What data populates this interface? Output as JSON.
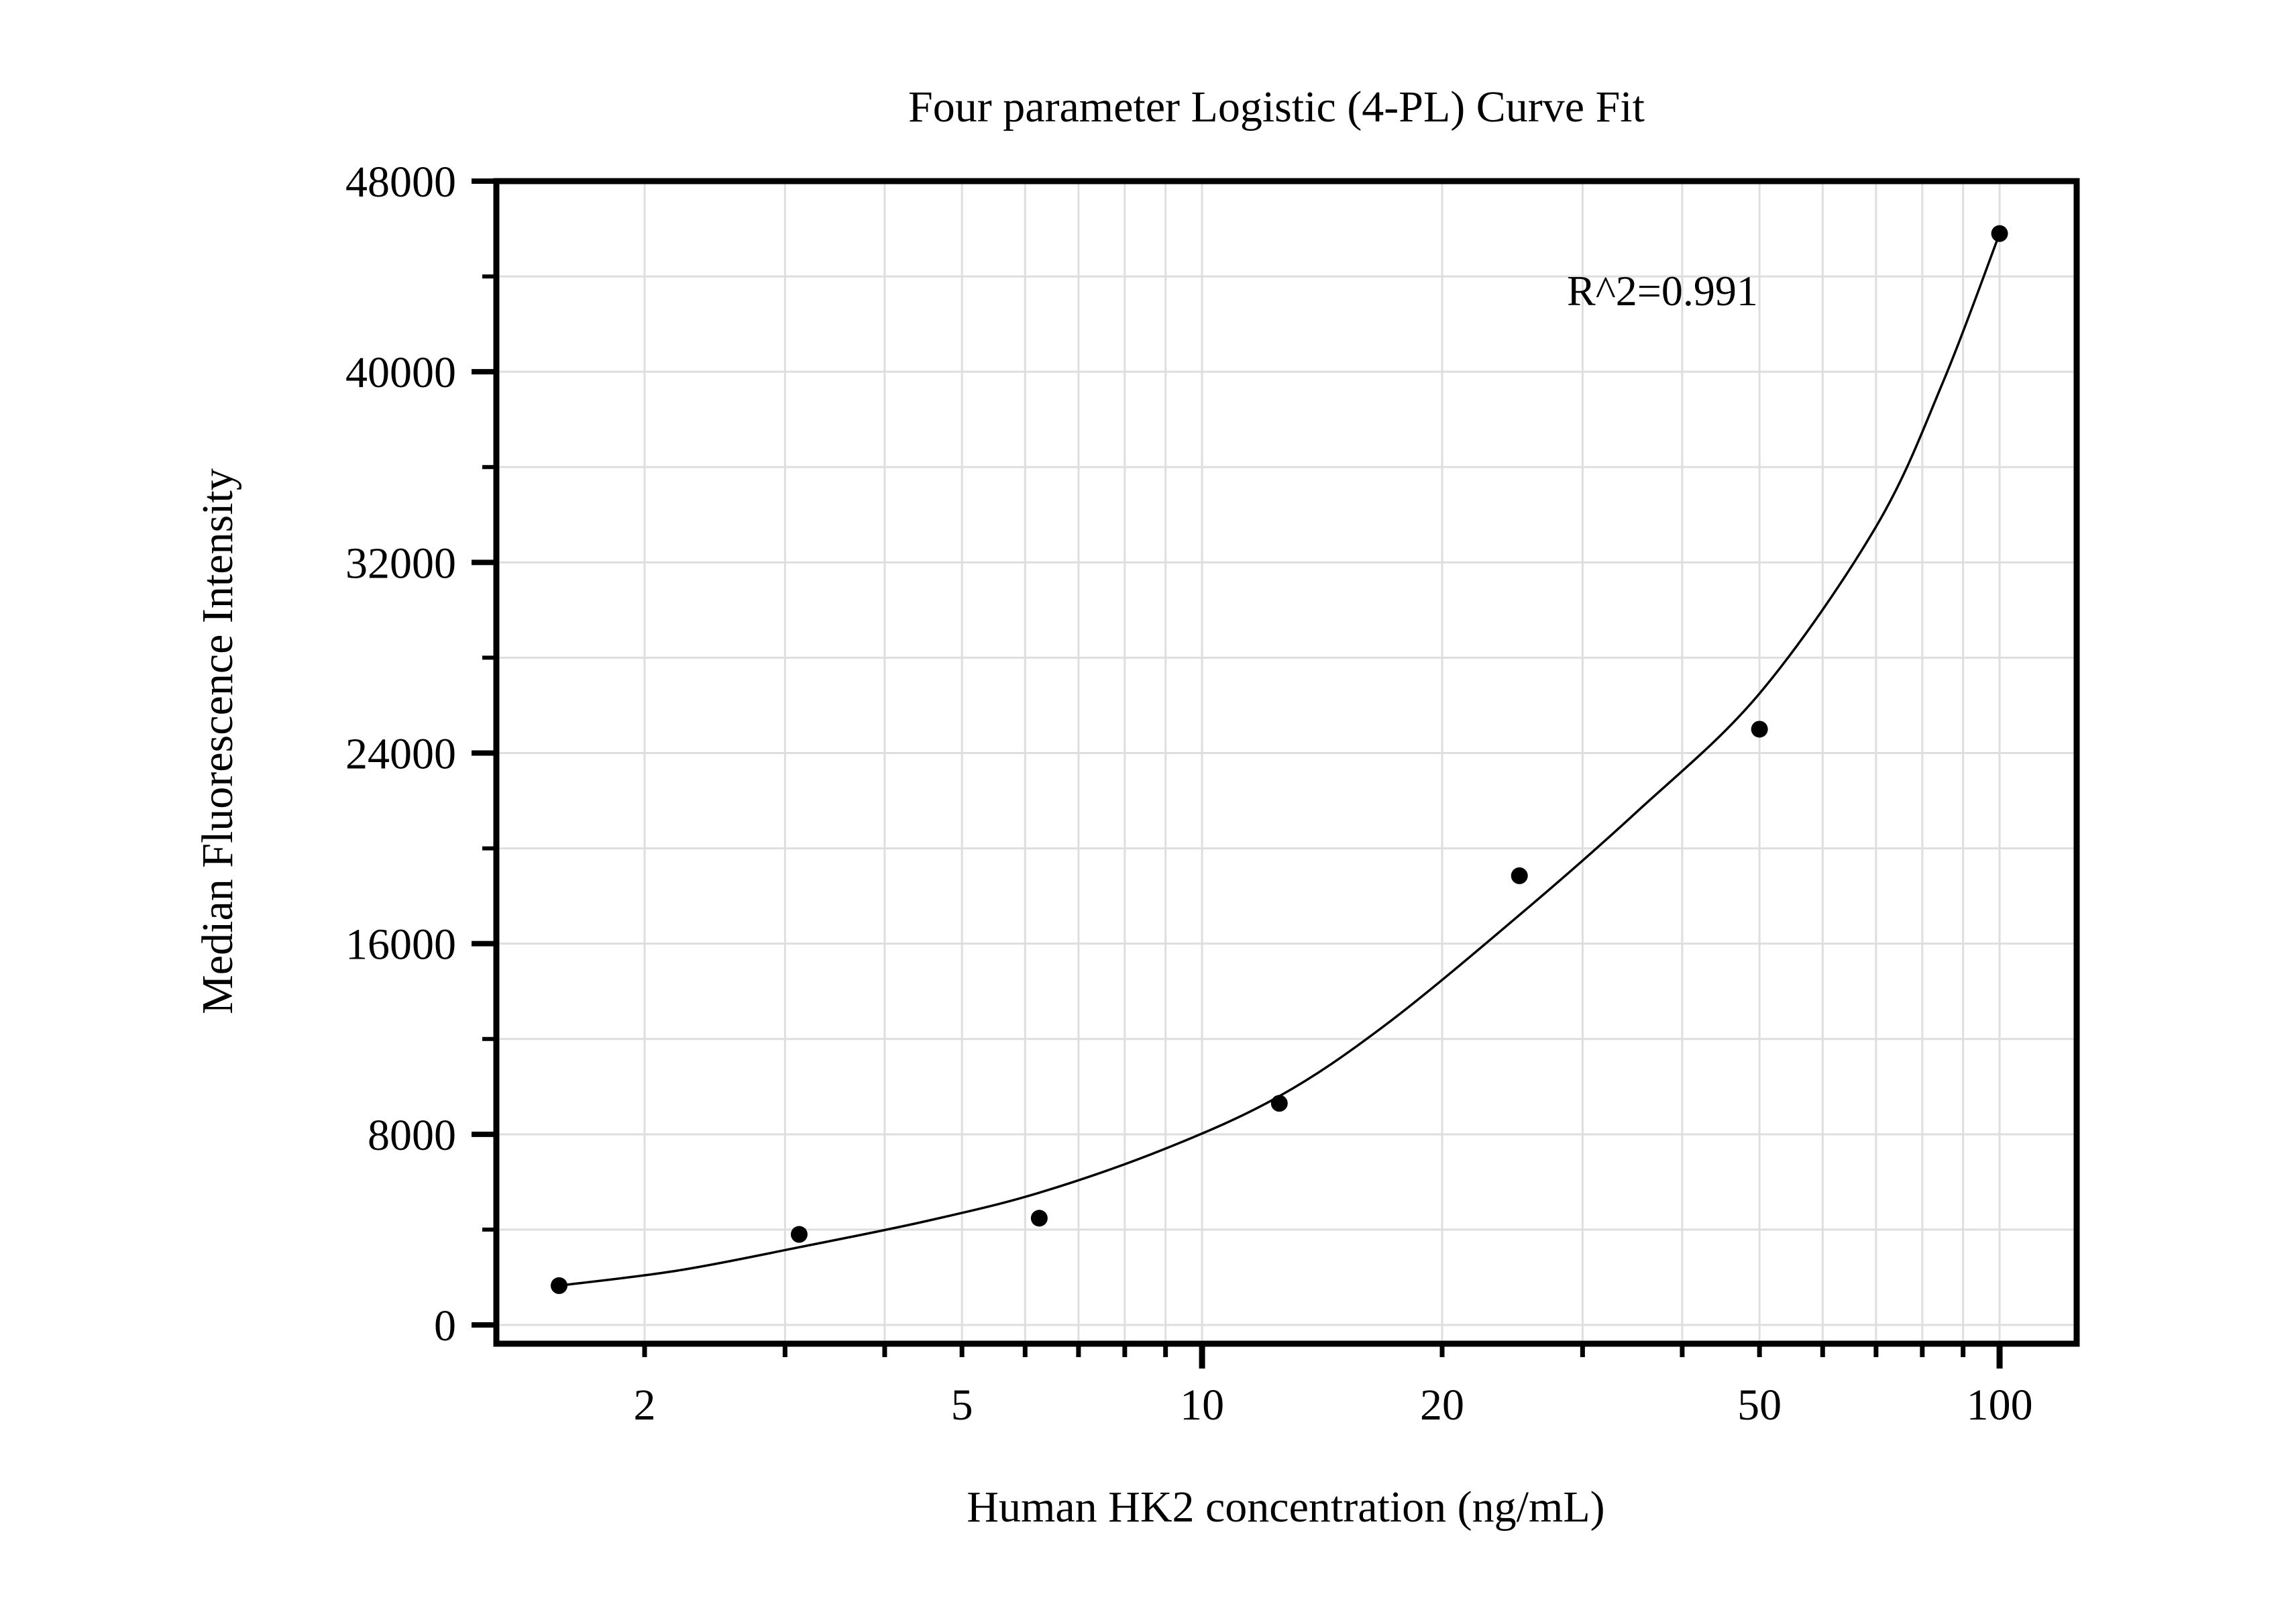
{
  "chart_data": {
    "type": "scatter",
    "title": "Four parameter Logistic (4-PL) Curve Fit",
    "xlabel": "Human HK2 concentration (ng/mL)",
    "ylabel": "Median Fluorescence Intensity",
    "annotation": "R^2=0.991",
    "x_scale": "log",
    "xlim": [
      1.3,
      125
    ],
    "ylim": [
      -800,
      48000
    ],
    "grid": true,
    "grid_color": "#dedede",
    "axis_color": "#000000",
    "point_color": "#000000",
    "curve_color": "#000000",
    "background_color": "#ffffff",
    "y_major_ticks": [
      0,
      8000,
      16000,
      24000,
      32000,
      40000,
      48000
    ],
    "y_minor_ticks": [
      4000,
      12000,
      20000,
      28000,
      36000,
      44000
    ],
    "y_gridline_step": 4000,
    "x_labeled_ticks": [
      2,
      5,
      10,
      20,
      50,
      100
    ],
    "x_major_ticks": [
      10,
      100
    ],
    "x_minor_ticks": [
      2,
      3,
      4,
      5,
      6,
      7,
      8,
      9,
      20,
      30,
      40,
      50,
      60,
      70,
      80,
      90
    ],
    "x_gridlines": [
      2,
      3,
      4,
      5,
      6,
      7,
      8,
      9,
      10,
      20,
      30,
      40,
      50,
      60,
      70,
      80,
      90,
      100
    ],
    "series": [
      {
        "name": "standard-points",
        "type": "scatter",
        "points": [
          [
            1.5625,
            1650
          ],
          [
            3.125,
            3800
          ],
          [
            6.25,
            4480
          ],
          [
            12.5,
            9300
          ],
          [
            25,
            18850
          ],
          [
            50,
            25000
          ],
          [
            100,
            45800
          ]
        ]
      },
      {
        "name": "4pl-fit-curve",
        "type": "line",
        "points": [
          [
            1.5625,
            1650
          ],
          [
            2.2,
            2280
          ],
          [
            3.125,
            3260
          ],
          [
            4.5,
            4350
          ],
          [
            6.25,
            5550
          ],
          [
            9,
            7400
          ],
          [
            12.5,
            9600
          ],
          [
            17,
            12600
          ],
          [
            25,
            17200
          ],
          [
            35,
            21500
          ],
          [
            50,
            26500
          ],
          [
            70,
            33500
          ],
          [
            85,
            39600
          ],
          [
            100,
            45800
          ]
        ]
      }
    ]
  }
}
